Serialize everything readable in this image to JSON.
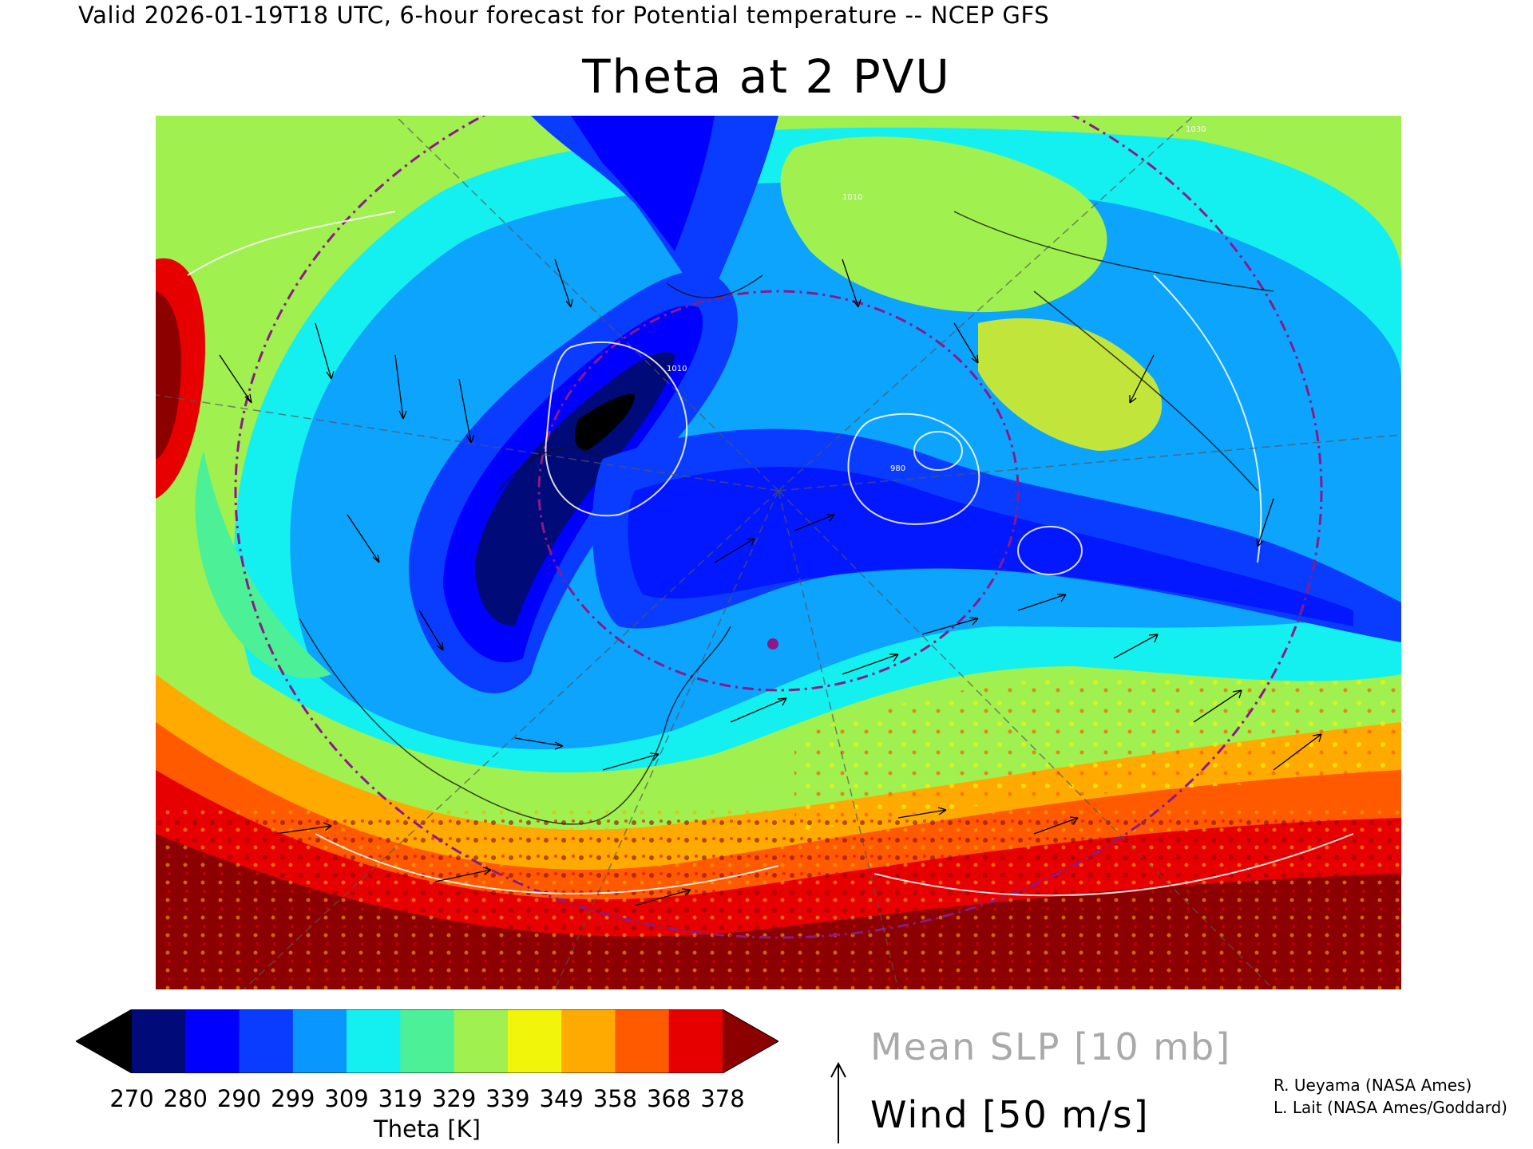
{
  "header": {
    "subtitle": "Valid 2026-01-19T18 UTC, 6-hour forecast for Potential temperature -- NCEP GFS",
    "title": "Theta at 2 PVU"
  },
  "colorbar": {
    "labels": [
      "270",
      "280",
      "290",
      "299",
      "309",
      "319",
      "329",
      "339",
      "349",
      "358",
      "368",
      "378"
    ],
    "colors": [
      "#000000",
      "#000a78",
      "#0000ff",
      "#0a3cff",
      "#0a96ff",
      "#14f0f0",
      "#4cf096",
      "#a0f050",
      "#f0f50a",
      "#ffaa00",
      "#ff5a00",
      "#e60000",
      "#8c0000"
    ],
    "unit_label": "Theta [K]"
  },
  "legend": {
    "slp_label": "Mean SLP [10 mb]",
    "wind_label": "Wind [50 m/s]"
  },
  "credits": {
    "line1": "R. Ueyama (NASA Ames)",
    "line2": "L. Lait (NASA Ames/Goddard)"
  },
  "map": {
    "field": "Potential temperature at 2 PVU",
    "contour_labels": [
      "980",
      "1010",
      "1010",
      "1030"
    ]
  }
}
